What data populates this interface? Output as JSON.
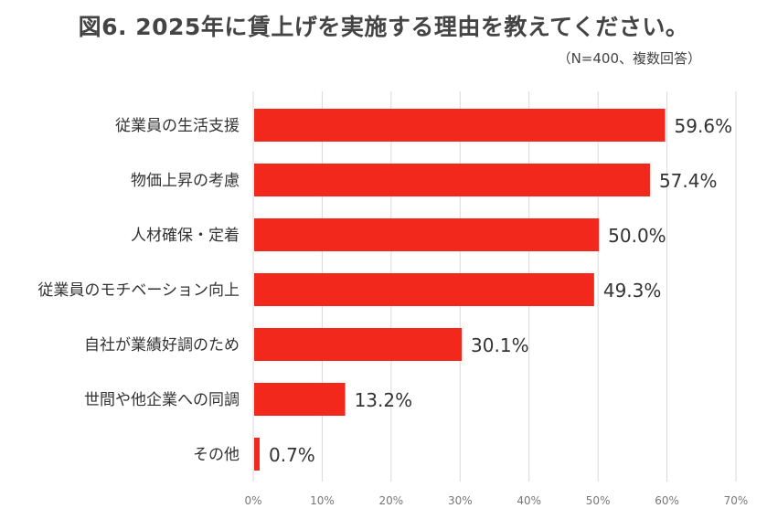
{
  "chart_data": {
    "type": "bar",
    "orientation": "horizontal",
    "title": "図6. 2025年に賃上げを実施する理由を教えてください。",
    "subtitle": "（N=400、複数回答）",
    "categories": [
      "従業員の生活支援",
      "物価上昇の考慮",
      "人材確保・定着",
      "従業員のモチベーション向上",
      "自社が業績好調のため",
      "世間や他企業への同調",
      "その他"
    ],
    "values": [
      59.6,
      57.4,
      50.0,
      49.3,
      30.1,
      13.2,
      0.7
    ],
    "data_labels": [
      "59.6%",
      "57.4%",
      "50.0%",
      "49.3%",
      "30.1%",
      "13.2%",
      "0.7%"
    ],
    "xlim": [
      0,
      70
    ],
    "x_ticks": [
      "0%",
      "10%",
      "20%",
      "30%",
      "40%",
      "50%",
      "60%",
      "70%"
    ],
    "grid": true,
    "bar_color": "#f2281c"
  }
}
